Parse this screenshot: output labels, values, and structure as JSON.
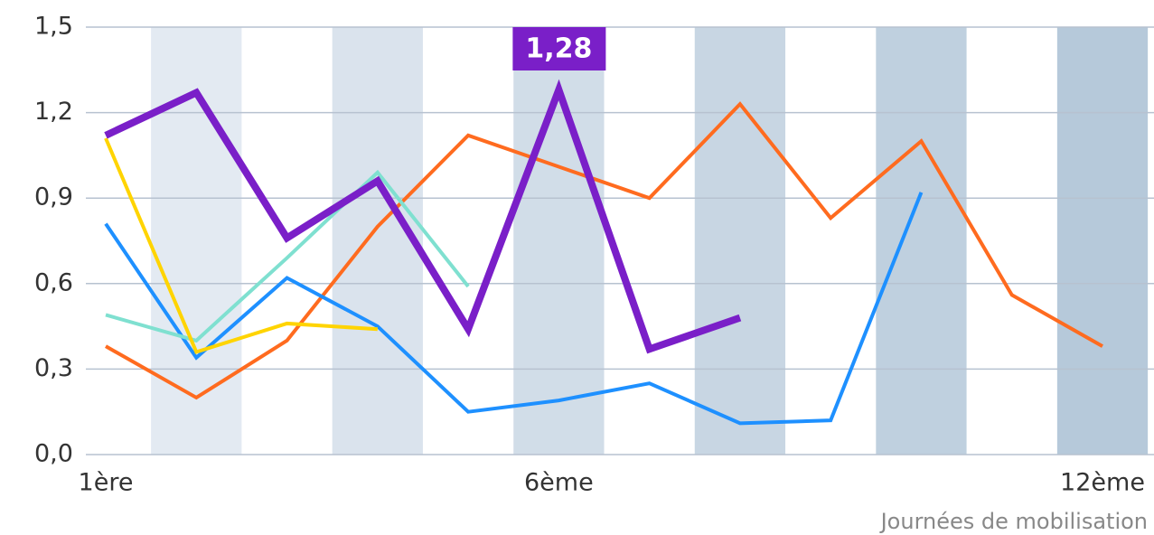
{
  "chart_data": {
    "type": "line",
    "x_label": "Journées de mobilisation",
    "categories": [
      "1ère",
      null,
      null,
      null,
      null,
      "6ème",
      null,
      null,
      null,
      null,
      null,
      "12ème"
    ],
    "series": [
      {
        "color": "#ff6b1f",
        "values": [
          0.38,
          0.2,
          0.4,
          0.8,
          1.12,
          1.01,
          0.9,
          1.23,
          0.83,
          1.1,
          0.56,
          0.38
        ]
      },
      {
        "color": "#1e90ff",
        "values": [
          0.81,
          0.34,
          0.62,
          0.45,
          0.15,
          0.19,
          0.25,
          0.11,
          0.12,
          0.92,
          null,
          null
        ]
      },
      {
        "color": "#7fe0d0",
        "values": [
          0.49,
          0.4,
          0.69,
          0.99,
          0.59,
          null,
          null,
          null,
          null,
          null,
          null,
          null
        ]
      },
      {
        "color": "#ffd400",
        "values": [
          1.11,
          0.36,
          0.46,
          0.44,
          null,
          null,
          null,
          null,
          null,
          null,
          null,
          null
        ]
      },
      {
        "color": "#7a1fc8",
        "values": [
          1.12,
          1.27,
          0.76,
          0.96,
          0.44,
          1.28,
          0.37,
          0.48,
          null,
          null,
          null,
          null
        ],
        "value_labels": [
          null,
          null,
          null,
          null,
          null,
          "1,28",
          null,
          null,
          null,
          null,
          null,
          null
        ]
      }
    ],
    "ylim": [
      0,
      1.5
    ],
    "yticks": [
      {
        "value": 0,
        "label": "0,0"
      },
      {
        "value": 0.3,
        "label": "0,3"
      },
      {
        "value": 0.6,
        "label": "0,6"
      },
      {
        "value": 0.9,
        "label": "0,9"
      },
      {
        "value": 1.2,
        "label": "1,2"
      },
      {
        "value": 1.5,
        "label": "1,5"
      }
    ],
    "grid": true
  }
}
